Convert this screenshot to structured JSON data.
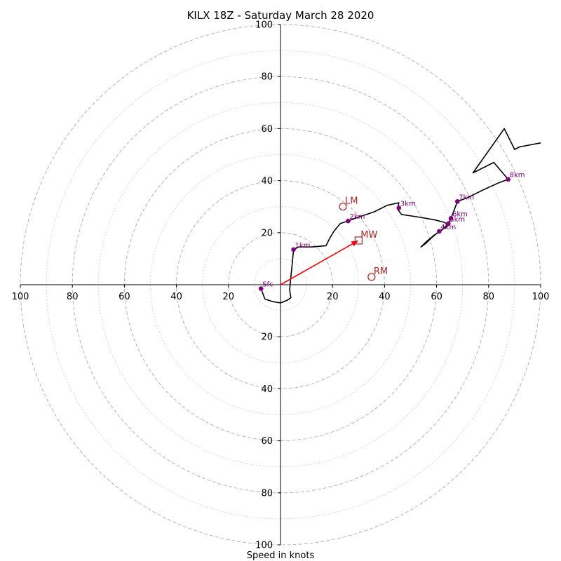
{
  "chart_data": {
    "type": "hodograph",
    "title": "KILX 18Z - Saturday March 28 2020",
    "xlabel": "Speed in knots",
    "units": "knots",
    "axis_range": [
      -100,
      100
    ],
    "rings_major": [
      20,
      40,
      60,
      80,
      100
    ],
    "rings_minor": [
      10,
      30,
      50,
      70,
      90
    ],
    "x_tick_labels": [
      {
        "value": -100,
        "label": "100"
      },
      {
        "value": -80,
        "label": "80"
      },
      {
        "value": -60,
        "label": "60"
      },
      {
        "value": -40,
        "label": "40"
      },
      {
        "value": -20,
        "label": "20"
      },
      {
        "value": 20,
        "label": "20"
      },
      {
        "value": 40,
        "label": "40"
      },
      {
        "value": 60,
        "label": "60"
      },
      {
        "value": 80,
        "label": "80"
      },
      {
        "value": 100,
        "label": "100"
      }
    ],
    "y_tick_labels": [
      {
        "value": 100,
        "label": "100"
      },
      {
        "value": 80,
        "label": "80"
      },
      {
        "value": 60,
        "label": "60"
      },
      {
        "value": 40,
        "label": "40"
      },
      {
        "value": 20,
        "label": "20"
      },
      {
        "value": -20,
        "label": "20"
      },
      {
        "value": -40,
        "label": "40"
      },
      {
        "value": -60,
        "label": "60"
      },
      {
        "value": -80,
        "label": "80"
      },
      {
        "value": -100,
        "label": "100"
      }
    ],
    "trace_color": "#000000",
    "trace": [
      [
        -7.5,
        -1.5
      ],
      [
        -6,
        -5.5
      ],
      [
        -3,
        -6.5
      ],
      [
        0,
        -7
      ],
      [
        2.5,
        -6
      ],
      [
        4,
        -5
      ],
      [
        3.5,
        -2
      ],
      [
        4,
        3
      ],
      [
        4.5,
        8
      ],
      [
        5,
        13.5
      ],
      [
        7,
        14.5
      ],
      [
        12,
        14.5
      ],
      [
        17.5,
        15
      ],
      [
        19,
        18
      ],
      [
        20.5,
        20.5
      ],
      [
        23,
        23.5
      ],
      [
        26,
        24.5
      ],
      [
        30,
        26
      ],
      [
        36,
        28
      ],
      [
        41,
        30.5
      ],
      [
        45.5,
        31.5
      ],
      [
        45,
        29
      ],
      [
        46.5,
        27
      ],
      [
        53,
        26
      ],
      [
        59,
        25
      ],
      [
        63,
        24
      ],
      [
        64.5,
        23
      ],
      [
        63.5,
        22
      ],
      [
        61,
        20.5
      ],
      [
        58,
        18
      ],
      [
        56,
        16
      ],
      [
        54,
        14.5
      ],
      [
        56,
        16.5
      ],
      [
        59,
        19
      ],
      [
        62,
        21
      ],
      [
        64.5,
        23.5
      ],
      [
        65.5,
        25.5
      ],
      [
        66.5,
        28
      ],
      [
        68,
        32
      ],
      [
        72,
        33.5
      ],
      [
        78,
        36.5
      ],
      [
        83.5,
        39
      ],
      [
        87.5,
        40.5
      ],
      [
        82,
        47
      ],
      [
        74,
        43
      ],
      [
        86,
        60
      ],
      [
        90,
        52
      ],
      [
        92,
        53
      ],
      [
        100,
        54.5
      ]
    ],
    "height_points_color": "#800080",
    "height_points": [
      {
        "label": "Sfc",
        "u": -7.5,
        "v": -1.5
      },
      {
        "label": "1km",
        "u": 5,
        "v": 13.5
      },
      {
        "label": "2km",
        "u": 26,
        "v": 24.5
      },
      {
        "label": "3km",
        "u": 45.5,
        "v": 29.5
      },
      {
        "label": "4km",
        "u": 61,
        "v": 20.5
      },
      {
        "label": "5km",
        "u": 64.5,
        "v": 23.5
      },
      {
        "label": "6km",
        "u": 65.5,
        "v": 25.5
      },
      {
        "label": "7km",
        "u": 68,
        "v": 32
      },
      {
        "label": "8km",
        "u": 87.5,
        "v": 40.5
      }
    ],
    "motion_color": "#b22222",
    "mean_wind_arrow_color": "#ff0000",
    "storm_motions": [
      {
        "label": "LM",
        "u": 24,
        "v": 30,
        "marker": "circle"
      },
      {
        "label": "MW",
        "u": 30,
        "v": 17,
        "marker": "square"
      },
      {
        "label": "RM",
        "u": 35,
        "v": 3,
        "marker": "circle"
      }
    ]
  }
}
